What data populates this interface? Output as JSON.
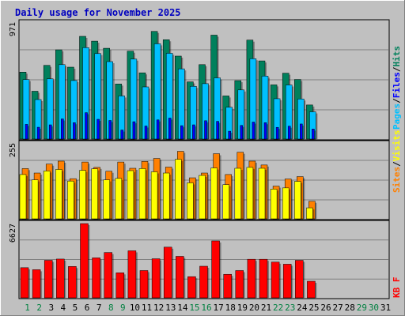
{
  "title": "Daily usage for November 2025",
  "colors": {
    "hits": "#00805c",
    "files": "#00c0ff",
    "pages": "#0000ff",
    "visits": "#ffff00",
    "sites": "#ff8000",
    "kbytes": "#ff0000",
    "weekday_label": "#000000",
    "weekend_label": "#008040",
    "panel_bg": "#c0c0c0",
    "grid": "#808080"
  },
  "legend": {
    "top": [
      "Pages",
      "Files",
      "Hits"
    ],
    "middle": [
      "Sites",
      "Visits"
    ],
    "bottom": [
      "KB F"
    ],
    "sep": "/"
  },
  "chart_data": [
    {
      "type": "bar",
      "title": "Daily usage for November 2025",
      "panel": "hits_files_pages",
      "y_max_label": "971",
      "ylim": [
        0,
        971
      ],
      "categories": [
        "1",
        "2",
        "3",
        "4",
        "5",
        "6",
        "7",
        "8",
        "9",
        "10",
        "11",
        "12",
        "13",
        "14",
        "15",
        "16",
        "17",
        "18",
        "19",
        "20",
        "21",
        "22",
        "23",
        "24",
        "25",
        "26",
        "27",
        "28",
        "29",
        "30",
        "31"
      ],
      "weekend_days": [
        "1",
        "2",
        "8",
        "9",
        "15",
        "16",
        "22",
        "23",
        "29",
        "30"
      ],
      "series": [
        {
          "name": "Hits",
          "values": [
            556,
            397,
            612,
            741,
            597,
            853,
            813,
            754,
            457,
            730,
            550,
            894,
            825,
            689,
            475,
            618,
            863,
            358,
            485,
            822,
            649,
            450,
            547,
            495,
            283,
            0,
            0,
            0,
            0,
            0,
            0
          ]
        },
        {
          "name": "Files",
          "values": [
            494,
            328,
            500,
            618,
            486,
            759,
            710,
            643,
            358,
            664,
            433,
            791,
            712,
            583,
            438,
            460,
            508,
            264,
            408,
            667,
            523,
            335,
            449,
            333,
            226,
            0,
            0,
            0,
            0,
            0,
            0
          ]
        },
        {
          "name": "Pages",
          "values": [
            122,
            98,
            118,
            167,
            136,
            219,
            164,
            154,
            75,
            144,
            108,
            159,
            174,
            111,
            118,
            152,
            147,
            65,
            113,
            141,
            136,
            97,
            107,
            125,
            83,
            0,
            0,
            0,
            0,
            0,
            0
          ]
        }
      ]
    },
    {
      "type": "bar",
      "panel": "visits_sites",
      "y_max_label": "255",
      "ylim": [
        0,
        255
      ],
      "series": [
        {
          "name": "Sites",
          "values": [
            169,
            154,
            184,
            194,
            135,
            191,
            173,
            160,
            191,
            170,
            193,
            203,
            174,
            227,
            138,
            154,
            219,
            149,
            224,
            194,
            181,
            110,
            134,
            142,
            59,
            0,
            0,
            0,
            0,
            0,
            0
          ]
        },
        {
          "name": "Visits",
          "values": [
            149,
            131,
            161,
            166,
            127,
            163,
            168,
            131,
            136,
            162,
            169,
            158,
            154,
            200,
            121,
            146,
            171,
            115,
            170,
            173,
            170,
            100,
            104,
            126,
            37,
            0,
            0,
            0,
            0,
            0,
            0
          ]
        }
      ]
    },
    {
      "type": "bar",
      "panel": "kbytes",
      "y_max_label": "6627",
      "ylim": [
        0,
        6627
      ],
      "series": [
        {
          "name": "KB F",
          "values": [
            2690,
            2510,
            3347,
            3460,
            2800,
            6627,
            3568,
            4045,
            2234,
            4197,
            2434,
            3487,
            4523,
            3701,
            1890,
            2820,
            5079,
            2099,
            2434,
            3442,
            3442,
            3187,
            3001,
            3347,
            1480,
            0,
            0,
            0,
            0,
            0,
            0
          ]
        }
      ]
    }
  ]
}
